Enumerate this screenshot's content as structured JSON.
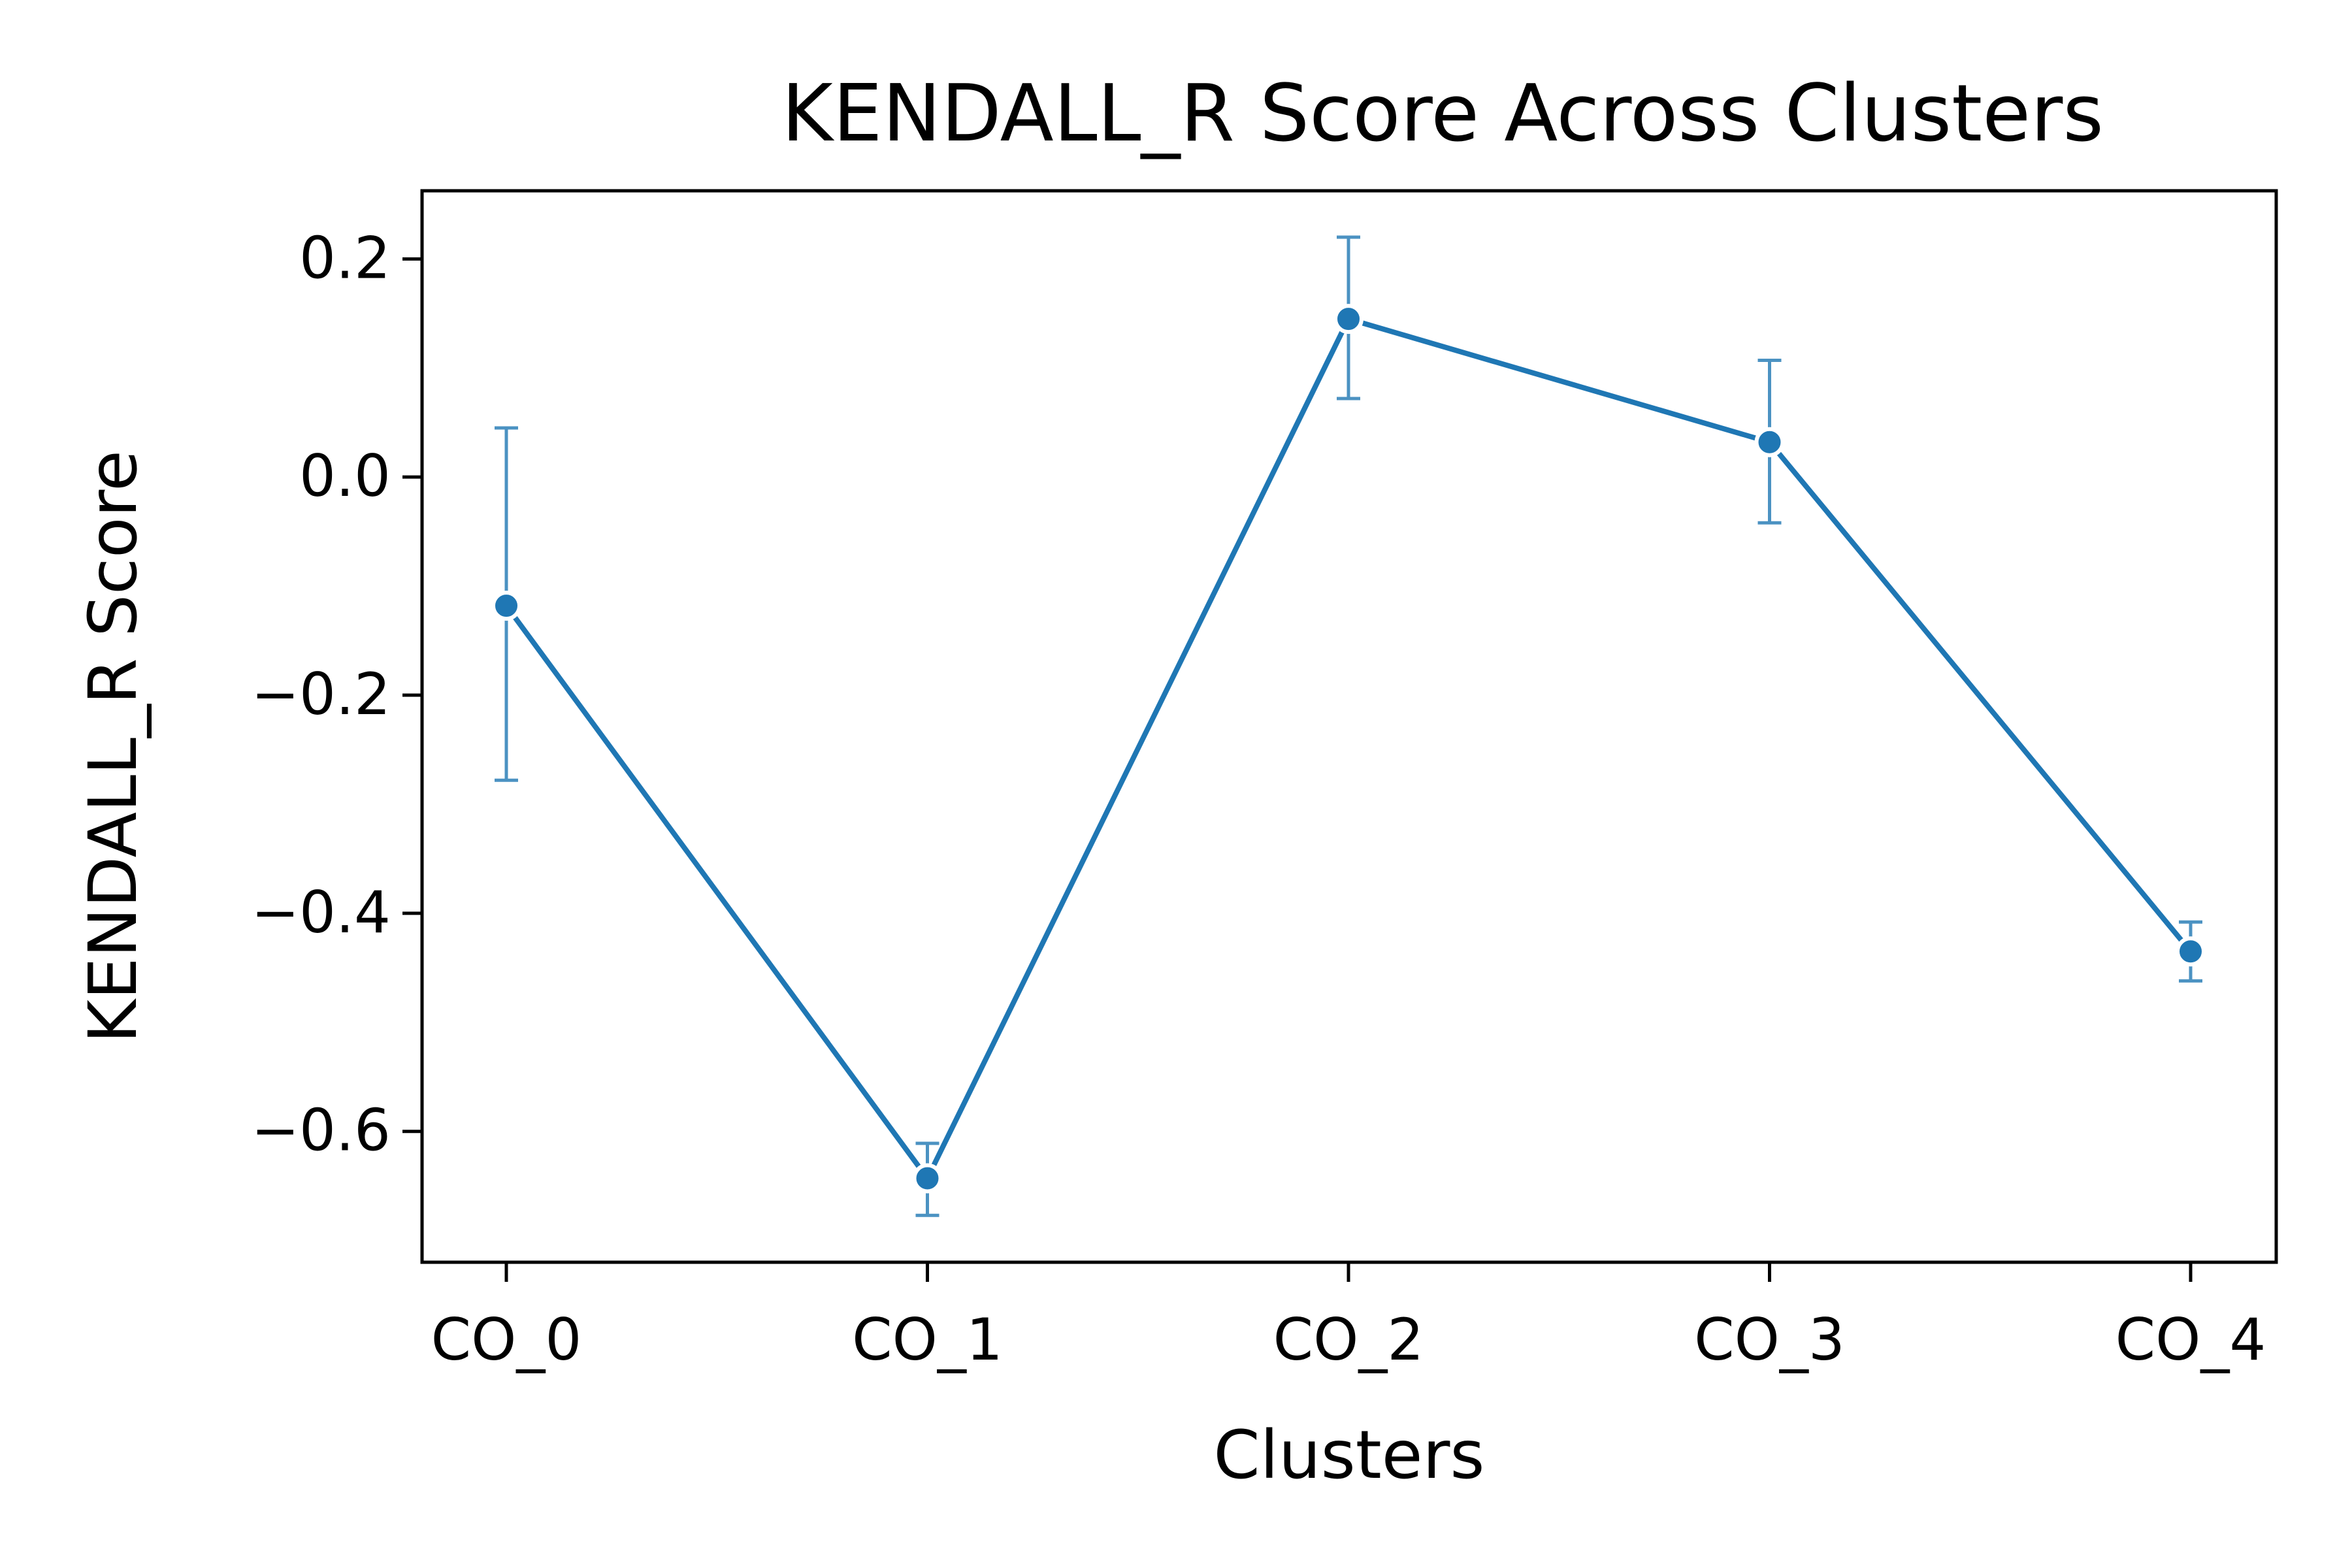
{
  "chart_data": {
    "type": "line",
    "title": "KENDALL_R Score Across Clusters",
    "xlabel": "Clusters",
    "ylabel": "KENDALL_R Score",
    "categories": [
      "CO_0",
      "CO_1",
      "CO_2",
      "CO_3",
      "CO_4"
    ],
    "series": [
      {
        "values": [
          -0.118,
          -0.643,
          0.145,
          0.032,
          -0.435
        ],
        "error_low": [
          -0.278,
          -0.677,
          0.072,
          -0.042,
          -0.462
        ],
        "error_high": [
          0.045,
          -0.611,
          0.22,
          0.107,
          -0.408
        ],
        "color": "#1f77b4"
      }
    ],
    "ylim": [
      -0.72,
      0.2625
    ],
    "yticks": [
      0.2,
      0.0,
      -0.2,
      -0.4,
      -0.6
    ],
    "ytick_labels": [
      "0.2",
      "0.0",
      "−0.2",
      "−0.4",
      "−0.6"
    ],
    "grid": false,
    "legend": "none"
  }
}
